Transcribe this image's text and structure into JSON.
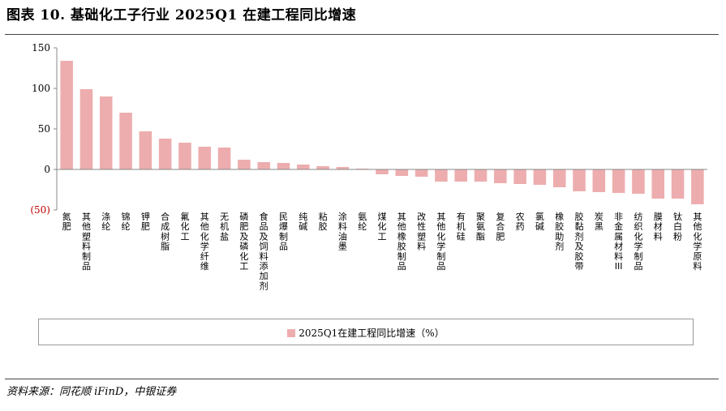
{
  "figure": {
    "title": "图表 10. 基础化工子行业 2025Q1 在建工程同比增速",
    "source": "资料来源：同花顺 iFinD，中银证券"
  },
  "chart_data": {
    "type": "bar",
    "categories": [
      "氮肥",
      "其他塑料制品",
      "涤纶",
      "锦纶",
      "钾肥",
      "合成树脂",
      "氟化工",
      "其他化学纤维",
      "无机盐",
      "磷肥及磷化工",
      "食品及饲料添加剂",
      "民爆制品",
      "纯碱",
      "粘胶",
      "涂料油墨",
      "氨纶",
      "煤化工",
      "其他橡胶制品",
      "改性塑料",
      "其他化学制品",
      "有机硅",
      "聚氨酯",
      "复合肥",
      "农药",
      "氯碱",
      "橡胶助剂",
      "胶黏剂及胶带",
      "炭黑",
      "非金属材料III",
      "纺织化学制品",
      "膜材料",
      "钛白粉",
      "其他化学原料"
    ],
    "series": [
      {
        "name": "2025Q1在建工程同比增速（%）",
        "values": [
          134,
          99,
          90,
          70,
          47,
          38,
          33,
          28,
          27,
          12,
          9,
          8,
          6,
          4,
          3,
          1,
          -6,
          -8,
          -9,
          -15,
          -15,
          -15,
          -17,
          -18,
          -19,
          -22,
          -27,
          -28,
          -29,
          -30,
          -36,
          -36,
          -43
        ]
      }
    ],
    "ylim": [
      -50,
      150
    ],
    "yticks": [
      -50,
      0,
      50,
      100,
      150
    ],
    "ytick_labels": [
      "(50)",
      "0",
      "50",
      "100",
      "150"
    ],
    "grid": false,
    "legend_position": "bottom",
    "colors": {
      "bar": "#EDADAE",
      "axis": "#888888",
      "negative_tick_label": "#C00000"
    }
  }
}
